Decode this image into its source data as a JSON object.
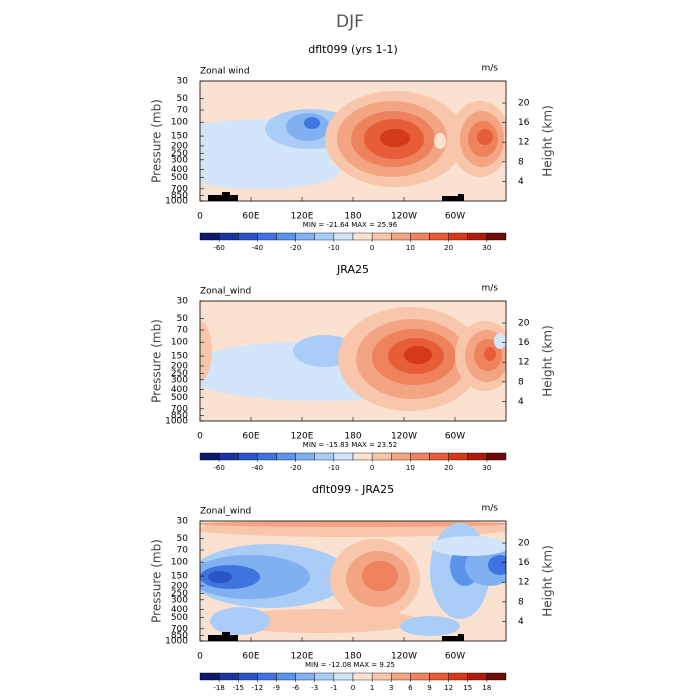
{
  "title": "DJF",
  "chart_data": [
    {
      "type": "contour",
      "title": "dflt099 (yrs 1-1)",
      "left_label": "Zonal wind",
      "units": "m/s",
      "ylabel": "Pressure (mb)",
      "y2label": "Height (km)",
      "stats": "MIN = -21.64   MAX =  25.96",
      "xlim": [
        0,
        360
      ],
      "xticks": [
        0,
        {
          "value": 60,
          "label": "60E"
        },
        {
          "value": 120,
          "label": "120E"
        },
        180,
        {
          "value": 240,
          "label": "120W"
        },
        {
          "value": 300,
          "label": "60W"
        }
      ],
      "ylim": [
        1000,
        30
      ],
      "log_scale": true,
      "yticks": [
        30,
        50,
        70,
        100,
        150,
        200,
        250,
        300,
        400,
        500,
        700,
        850,
        1000
      ],
      "y2lim": [
        0,
        24.5
      ],
      "y2ticks": [
        4,
        8,
        12,
        16,
        20
      ],
      "levels": [
        -60,
        -40,
        -20,
        -10,
        0,
        10,
        20,
        30
      ],
      "colors": [
        "#0b1a6b",
        "#1a35a0",
        "#2a55c8",
        "#3f74de",
        "#5b93ea",
        "#80b0f2",
        "#a9cdf7",
        "#d2e5fa",
        "#fbe2d0",
        "#f8c6aa",
        "#f3a583",
        "#ee825c",
        "#e65d37",
        "#d4391a",
        "#ac1c0a",
        "#6e0b04"
      ]
    },
    {
      "type": "contour",
      "title": "JRA25",
      "left_label": "Zonal_wind",
      "units": "m/s",
      "ylabel": "Pressure (mb)",
      "y2label": "Height (km)",
      "stats": "MIN = -15.83   MAX =  23.52",
      "xlim": [
        0,
        360
      ],
      "xticks": [
        0,
        {
          "value": 60,
          "label": "60E"
        },
        {
          "value": 120,
          "label": "120E"
        },
        180,
        {
          "value": 240,
          "label": "120W"
        },
        {
          "value": 300,
          "label": "60W"
        }
      ],
      "ylim": [
        1000,
        30
      ],
      "log_scale": true,
      "yticks": [
        30,
        50,
        70,
        100,
        150,
        200,
        250,
        300,
        400,
        500,
        700,
        850,
        1000
      ],
      "y2lim": [
        0,
        24.5
      ],
      "y2ticks": [
        4,
        8,
        12,
        16,
        20
      ],
      "levels": [
        -60,
        -40,
        -20,
        -10,
        0,
        10,
        20,
        30
      ],
      "colors": [
        "#0b1a6b",
        "#1a35a0",
        "#2a55c8",
        "#3f74de",
        "#5b93ea",
        "#80b0f2",
        "#a9cdf7",
        "#d2e5fa",
        "#fbe2d0",
        "#f8c6aa",
        "#f3a583",
        "#ee825c",
        "#e65d37",
        "#d4391a",
        "#ac1c0a",
        "#6e0b04"
      ]
    },
    {
      "type": "contour",
      "title": "dflt099 - JRA25",
      "left_label": "Zonal_wind",
      "units": "m/s",
      "ylabel": "Pressure (mb)",
      "y2label": "Height (km)",
      "stats": "MIN = -12.08   MAX =   9.25",
      "xlim": [
        0,
        360
      ],
      "xticks": [
        0,
        {
          "value": 60,
          "label": "60E"
        },
        {
          "value": 120,
          "label": "120E"
        },
        180,
        {
          "value": 240,
          "label": "120W"
        },
        {
          "value": 300,
          "label": "60W"
        }
      ],
      "ylim": [
        1000,
        30
      ],
      "log_scale": true,
      "yticks": [
        30,
        50,
        70,
        100,
        150,
        200,
        250,
        300,
        400,
        500,
        700,
        850,
        1000
      ],
      "y2lim": [
        0,
        24.5
      ],
      "y2ticks": [
        4,
        8,
        12,
        16,
        20
      ],
      "levels": [
        -18,
        -15,
        -12,
        -9,
        -6,
        -3,
        -1,
        0,
        1,
        3,
        6,
        9,
        12,
        15,
        18
      ],
      "colors": [
        "#0b1a6b",
        "#1a35a0",
        "#2a55c8",
        "#3f74de",
        "#5b93ea",
        "#80b0f2",
        "#a9cdf7",
        "#d2e5fa",
        "#fbe2d0",
        "#f8c6aa",
        "#f3a583",
        "#ee825c",
        "#e65d37",
        "#d4391a",
        "#ac1c0a",
        "#6e0b04"
      ]
    }
  ]
}
